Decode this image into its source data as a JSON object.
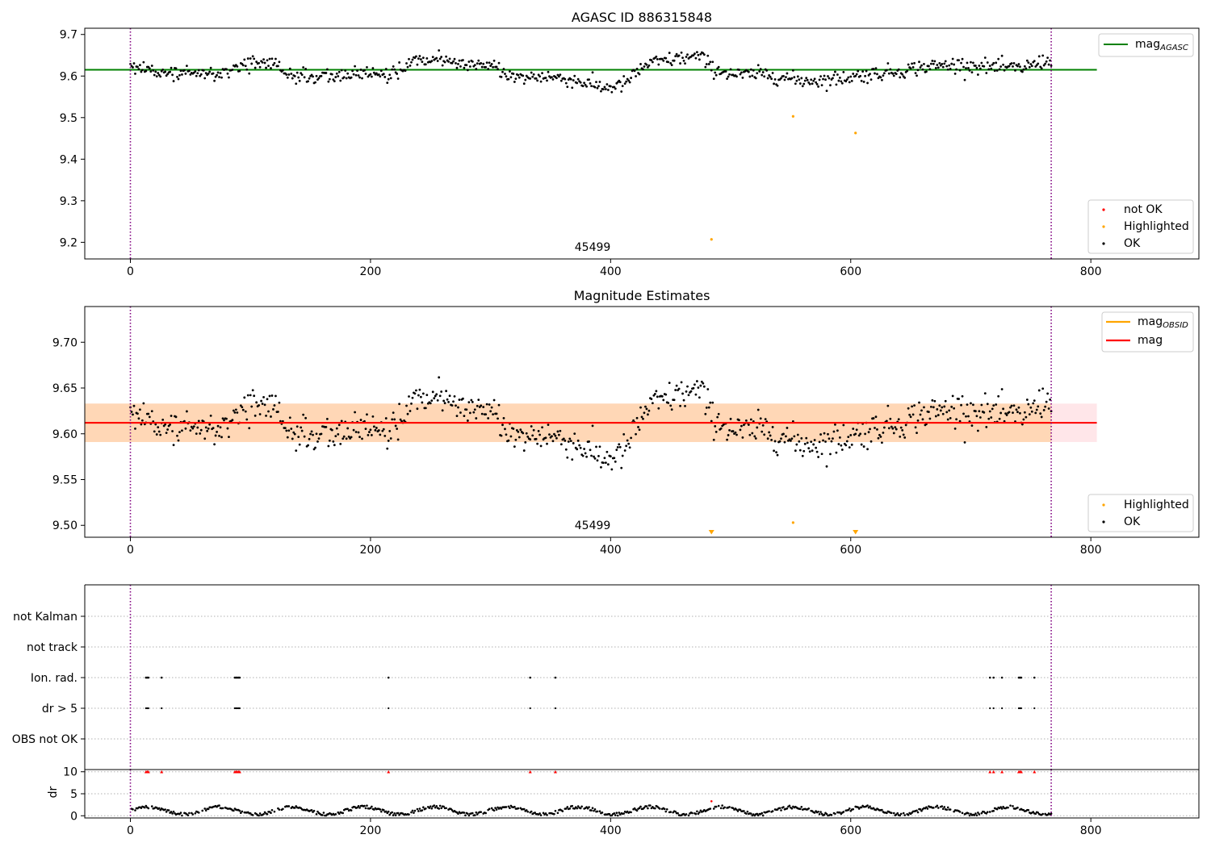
{
  "chart_data": [
    {
      "type": "scatter",
      "title": "AGASC ID 886315848",
      "xlim": [
        -38,
        890
      ],
      "ylim": [
        9.16,
        9.715
      ],
      "xticks": [
        "0",
        "200",
        "400",
        "600",
        "800"
      ],
      "yticks": [
        "9.2",
        "9.3",
        "9.4",
        "9.5",
        "9.6",
        "9.7"
      ],
      "ytick_values": [
        9.2,
        9.3,
        9.4,
        9.5,
        9.6,
        9.7
      ],
      "obs_boundaries": [
        0,
        767
      ],
      "obsid_label": "45499",
      "obsid_label_x": 385,
      "hline": {
        "name": "mag_AGASC",
        "value": 9.615,
        "x_range": [
          -38,
          805
        ],
        "color": "#008000"
      },
      "highlighted_points": [
        {
          "x": 552,
          "y": 9.503
        },
        {
          "x": 604,
          "y": 9.463
        },
        {
          "x": 484,
          "y": 9.207
        }
      ],
      "ok_series_model": {
        "n_points": 768,
        "baseline": 9.612,
        "noise": 0.012
      },
      "legend_lines": [
        {
          "label": "mag",
          "sub": "AGASC",
          "color": "#008000"
        }
      ],
      "legend_markers": [
        {
          "label": "not OK",
          "color": "#ff0000"
        },
        {
          "label": "Highlighted",
          "color": "#ffa500"
        },
        {
          "label": "OK",
          "color": "#000000"
        }
      ]
    },
    {
      "type": "scatter",
      "title": "Magnitude Estimates",
      "xlim": [
        -38,
        890
      ],
      "ylim": [
        9.487,
        9.739
      ],
      "xticks": [
        "0",
        "200",
        "400",
        "600",
        "800"
      ],
      "yticks": [
        "9.50",
        "9.55",
        "9.60",
        "9.65",
        "9.70"
      ],
      "ytick_values": [
        9.5,
        9.55,
        9.6,
        9.65,
        9.7
      ],
      "obs_boundaries": [
        0,
        767
      ],
      "obsid_label": "45499",
      "obsid_label_x": 385,
      "band_pink": {
        "x_range": [
          -38,
          805
        ],
        "y_range": [
          9.591,
          9.633
        ],
        "color": "#ffb6c1"
      },
      "band_orange": {
        "x_range": [
          -38,
          767
        ],
        "y_range": [
          9.591,
          9.633
        ],
        "color": "#ffa500"
      },
      "hline_obsid": {
        "name": "mag_OBSID",
        "value": 9.612,
        "x_range": [
          -38,
          767
        ],
        "color": "#ffa500"
      },
      "hline_mag": {
        "name": "mag",
        "value": 9.612,
        "x_range": [
          -38,
          805
        ],
        "color": "#ff0000"
      },
      "highlighted_points": [
        {
          "x": 552,
          "y": 9.503
        }
      ],
      "offscale_markers": [
        {
          "x": 484
        },
        {
          "x": 604
        }
      ],
      "legend_lines": [
        {
          "label": "mag",
          "sub": "OBSID",
          "color": "#ffa500"
        },
        {
          "label": "mag",
          "sub": "",
          "color": "#ff0000"
        }
      ],
      "legend_markers": [
        {
          "label": "Highlighted",
          "color": "#ffa500"
        },
        {
          "label": "OK",
          "color": "#000000"
        }
      ]
    },
    {
      "type": "scatter",
      "title": "",
      "xlim": [
        -38,
        890
      ],
      "categories": [
        "not Kalman",
        "not track",
        "Ion. rad.",
        "dr > 5",
        "OBS not OK"
      ],
      "obs_boundaries": [
        0,
        767
      ],
      "flag_events_x": [
        13,
        14,
        15,
        26,
        87,
        88,
        89,
        90,
        91,
        215,
        333,
        354,
        716,
        719,
        726,
        740,
        741,
        742,
        753
      ],
      "flag_rows": {
        "Ion. rad.": "flag_events_x",
        "dr > 5": "flag_events_x"
      }
    },
    {
      "type": "scatter",
      "title": "",
      "ylabel": "dr",
      "xlim": [
        -38,
        890
      ],
      "ylim": [
        -0.5,
        10.5
      ],
      "xticks": [
        "0",
        "200",
        "400",
        "600",
        "800"
      ],
      "yticks": [
        "0",
        "5",
        "10"
      ],
      "ytick_values": [
        0,
        5,
        10
      ],
      "obs_boundaries": [
        0,
        767
      ],
      "red_markers_at_10_x": [
        13,
        14,
        15,
        26,
        87,
        88,
        89,
        90,
        91,
        215,
        333,
        354,
        716,
        719,
        726,
        740,
        741,
        742,
        753
      ],
      "highlighted_point": {
        "x": 484,
        "y": 3.3
      }
    }
  ]
}
